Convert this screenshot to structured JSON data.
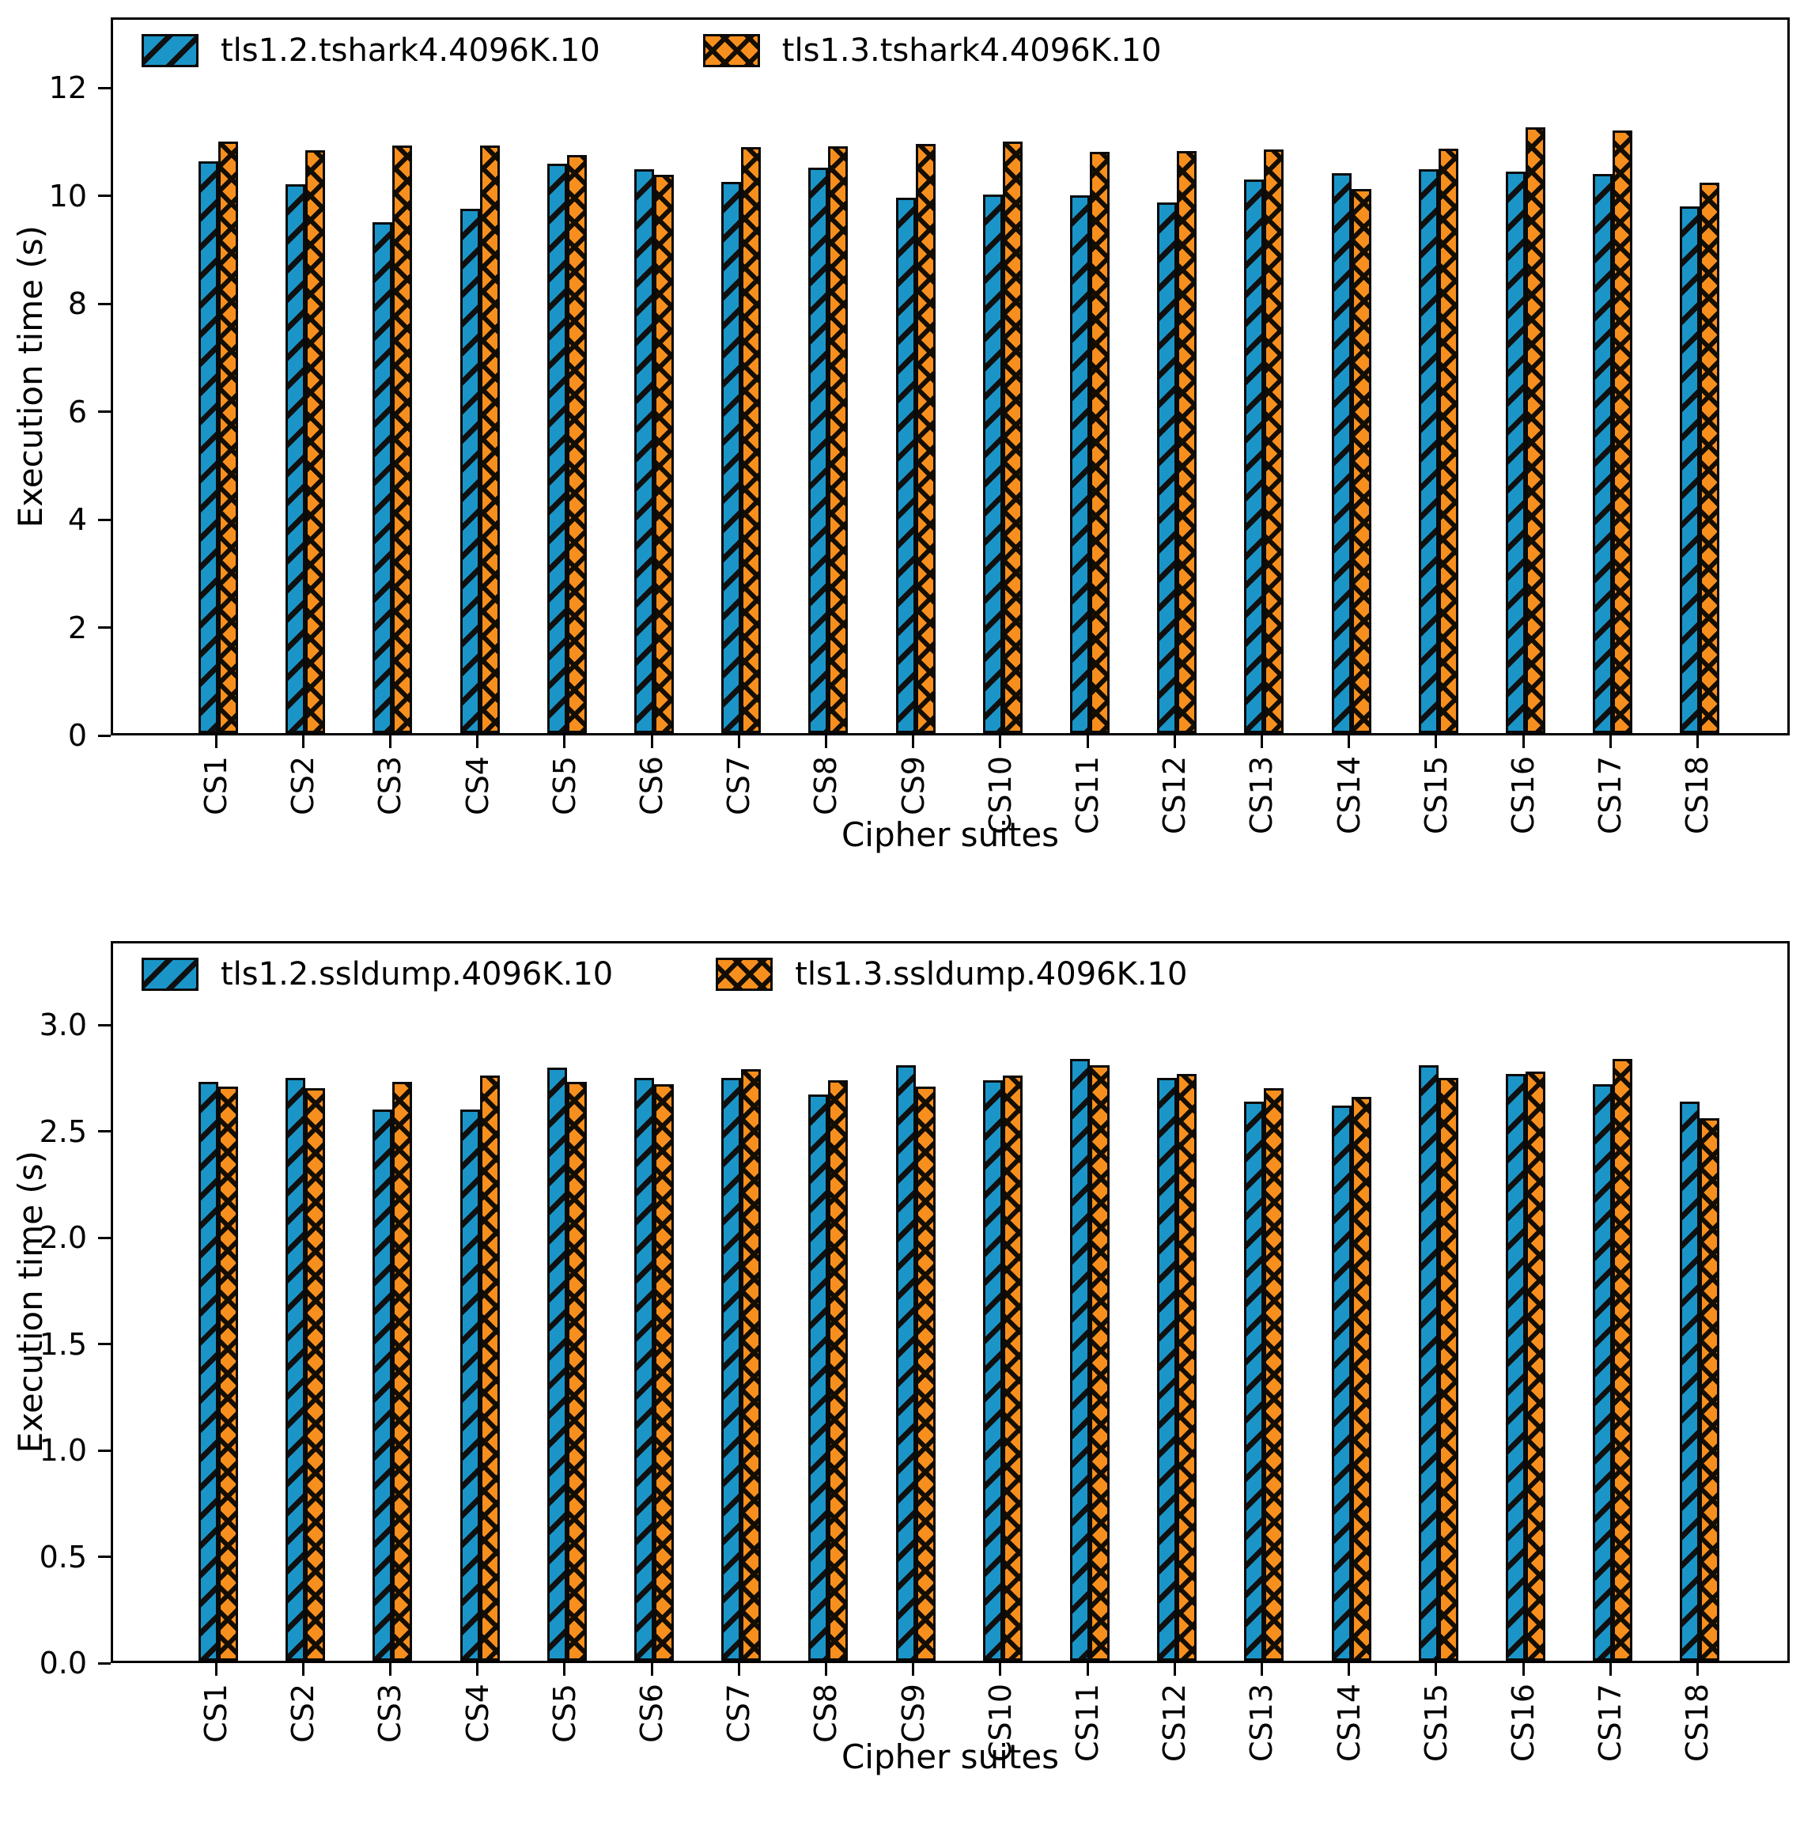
{
  "figure": {
    "background": "#ffffff",
    "series_colors": {
      "tls12_blue": "#1b95c8",
      "tls13_orange": "#f78f1e"
    },
    "hatch_color": "#101010"
  },
  "chart_data": [
    {
      "type": "bar",
      "title": "",
      "xlabel": "Cipher suites",
      "ylabel": "Execution time (s)",
      "grid": false,
      "legend_position": "upper-left",
      "categories": [
        "CS1",
        "CS2",
        "CS3",
        "CS4",
        "CS5",
        "CS6",
        "CS7",
        "CS8",
        "CS9",
        "CS10",
        "CS11",
        "CS12",
        "CS13",
        "CS14",
        "CS15",
        "CS16",
        "CS17",
        "CS18"
      ],
      "series": [
        {
          "name": "tls1.2.tshark4.4096K.10",
          "color": "#1b95c8",
          "hatch": "diagonal",
          "values": [
            10.6,
            10.18,
            9.47,
            9.72,
            10.56,
            10.45,
            10.22,
            10.48,
            9.93,
            9.98,
            9.97,
            9.84,
            10.26,
            10.38,
            10.45,
            10.41,
            10.36,
            9.76
          ]
        },
        {
          "name": "tls1.3.tshark4.4096K.10",
          "color": "#f78f1e",
          "hatch": "cross",
          "values": [
            10.96,
            10.8,
            10.89,
            10.89,
            10.72,
            10.35,
            10.87,
            10.88,
            10.92,
            10.96,
            10.77,
            10.79,
            10.82,
            10.09,
            10.83,
            11.23,
            11.17,
            10.2
          ]
        }
      ],
      "ylim": [
        0,
        13.31
      ],
      "yticks": {
        "values": [
          0,
          2,
          4,
          6,
          8,
          10,
          12
        ],
        "labels": [
          "0",
          "2",
          "4",
          "6",
          "8",
          "10",
          "12"
        ]
      }
    },
    {
      "type": "bar",
      "title": "",
      "xlabel": "Cipher suites",
      "ylabel": "Execution time (s)",
      "grid": false,
      "legend_position": "upper-left",
      "categories": [
        "CS1",
        "CS2",
        "CS3",
        "CS4",
        "CS5",
        "CS6",
        "CS7",
        "CS8",
        "CS9",
        "CS10",
        "CS11",
        "CS12",
        "CS13",
        "CS14",
        "CS15",
        "CS16",
        "CS17",
        "CS18"
      ],
      "series": [
        {
          "name": "tls1.2.ssldump.4096K.10",
          "color": "#1b95c8",
          "hatch": "diagonal",
          "values": [
            2.72,
            2.74,
            2.59,
            2.59,
            2.79,
            2.74,
            2.74,
            2.66,
            2.8,
            2.73,
            2.83,
            2.74,
            2.63,
            2.61,
            2.8,
            2.76,
            2.71,
            2.63
          ]
        },
        {
          "name": "tls1.3.ssldump.4096K.10",
          "color": "#f78f1e",
          "hatch": "cross",
          "values": [
            2.7,
            2.69,
            2.72,
            2.75,
            2.72,
            2.71,
            2.78,
            2.73,
            2.7,
            2.75,
            2.8,
            2.76,
            2.69,
            2.65,
            2.74,
            2.77,
            2.83,
            2.55
          ]
        }
      ],
      "ylim": [
        0,
        3.394
      ],
      "yticks": {
        "values": [
          0,
          0.5,
          1.0,
          1.5,
          2.0,
          2.5,
          3.0
        ],
        "labels": [
          "0.0",
          "0.5",
          "1.0",
          "1.5",
          "2.0",
          "2.5",
          "3.0"
        ]
      }
    }
  ]
}
